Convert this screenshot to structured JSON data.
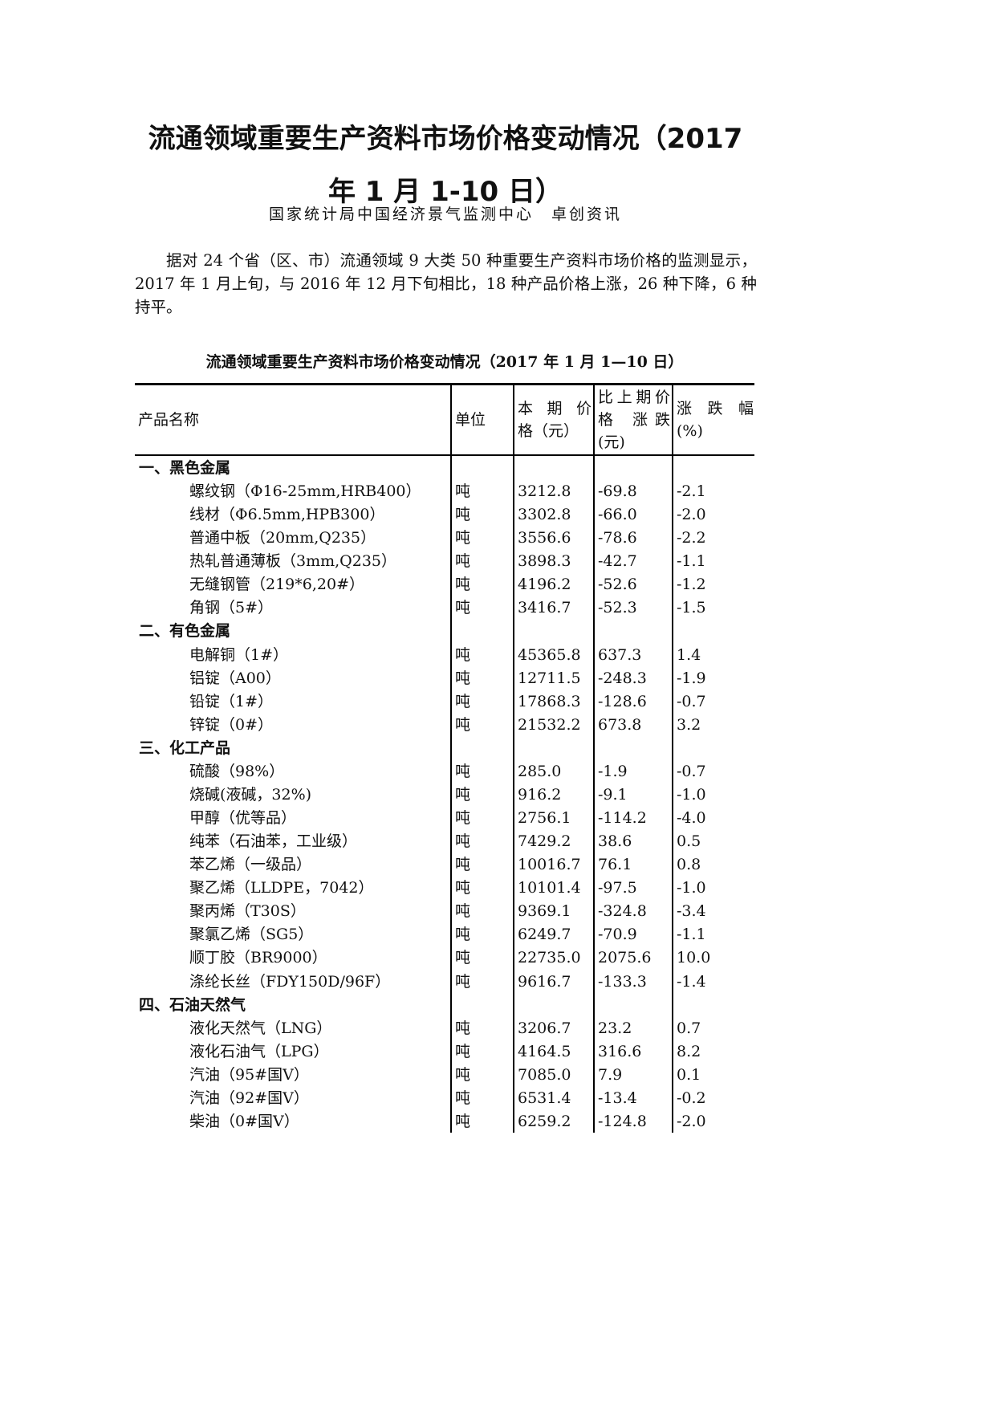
{
  "title_line1": "流通领域重要生产资料市场价格变动情况（2017",
  "title_line2": "年 1 月 1-10 日）",
  "source": "国家统计局中国经济景气监测中心　卓创资讯",
  "paragraph": "据对 24 个省（区、市）流通领域 9 大类 50 种重要生产资料市场价格的监测显示，2017 年 1 月上旬，与 2016 年 12 月下旬相比，18 种产品价格上涨，26 种下降，6 种持平。",
  "table_title": "流通领域重要生产资料市场价格变动情况（2017 年 1 月 1—10 日）",
  "headers": {
    "name": "产品名称",
    "unit": "单位",
    "price": "本 期 价 格（元）",
    "change": "比上期价 格 涨跌(元)",
    "pct": "涨 跌 幅(%)"
  },
  "sections": [
    {
      "category": "一、黑色金属",
      "rows": [
        [
          "螺纹钢（Φ16-25mm,HRB400）",
          "吨",
          "3212.8",
          "-69.8",
          "-2.1"
        ],
        [
          "线材（Φ6.5mm,HPB300）",
          "吨",
          "3302.8",
          "-66.0",
          "-2.0"
        ],
        [
          "普通中板（20mm,Q235）",
          "吨",
          "3556.6",
          "-78.6",
          "-2.2"
        ],
        [
          "热轧普通薄板（3mm,Q235）",
          "吨",
          "3898.3",
          "-42.7",
          "-1.1"
        ],
        [
          "无缝钢管（219*6,20#）",
          "吨",
          "4196.2",
          "-52.6",
          "-1.2"
        ],
        [
          "角钢（5#）",
          "吨",
          "3416.7",
          "-52.3",
          "-1.5"
        ]
      ]
    },
    {
      "category": "二、有色金属",
      "rows": [
        [
          "电解铜（1#）",
          "吨",
          "45365.8",
          "637.3",
          "1.4"
        ],
        [
          "铝锭（A00）",
          "吨",
          "12711.5",
          "-248.3",
          "-1.9"
        ],
        [
          "铅锭（1#）",
          "吨",
          "17868.3",
          "-128.6",
          "-0.7"
        ],
        [
          "锌锭（0#）",
          "吨",
          "21532.2",
          "673.8",
          "3.2"
        ]
      ]
    },
    {
      "category": "三、化工产品",
      "rows": [
        [
          "硫酸（98%）",
          "吨",
          "285.0",
          "-1.9",
          "-0.7"
        ],
        [
          "烧碱(液碱，32%)",
          "吨",
          "916.2",
          "-9.1",
          "-1.0"
        ],
        [
          "甲醇（优等品）",
          "吨",
          "2756.1",
          "-114.2",
          "-4.0"
        ],
        [
          "纯苯（石油苯，工业级）",
          "吨",
          "7429.2",
          "38.6",
          "0.5"
        ],
        [
          "苯乙烯（一级品）",
          "吨",
          "10016.7",
          "76.1",
          "0.8"
        ],
        [
          "聚乙烯（LLDPE，7042）",
          "吨",
          "10101.4",
          "-97.5",
          "-1.0"
        ],
        [
          "聚丙烯（T30S）",
          "吨",
          "9369.1",
          "-324.8",
          "-3.4"
        ],
        [
          "聚氯乙烯（SG5）",
          "吨",
          "6249.7",
          "-70.9",
          "-1.1"
        ],
        [
          "顺丁胶（BR9000）",
          "吨",
          "22735.0",
          "2075.6",
          "10.0"
        ],
        [
          "涤纶长丝（FDY150D/96F）",
          "吨",
          "9616.7",
          "-133.3",
          "-1.4"
        ]
      ]
    },
    {
      "category": "四、石油天然气",
      "rows": [
        [
          "液化天然气（LNG）",
          "吨",
          "3206.7",
          "23.2",
          "0.7"
        ],
        [
          "液化石油气（LPG）",
          "吨",
          "4164.5",
          "316.6",
          "8.2"
        ],
        [
          "汽油（95#国Ⅴ）",
          "吨",
          "7085.0",
          "7.9",
          "0.1"
        ],
        [
          "汽油（92#国Ⅴ）",
          "吨",
          "6531.4",
          "-13.4",
          "-0.2"
        ],
        [
          "柴油（0#国Ⅴ）",
          "吨",
          "6259.2",
          "-124.8",
          "-2.0"
        ]
      ]
    }
  ]
}
